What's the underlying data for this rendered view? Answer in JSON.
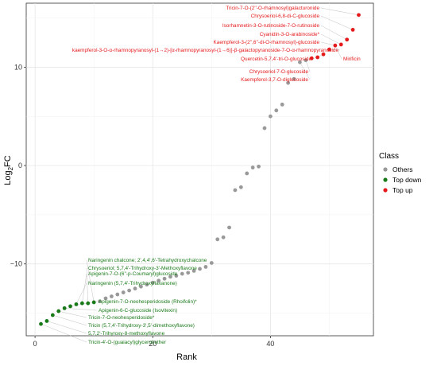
{
  "chart_data": {
    "type": "scatter",
    "xlabel": "Rank",
    "ylabel": "Log2FC",
    "ylabel_main": "Log",
    "ylabel_sub": "2",
    "ylabel_tail": "FC",
    "xlim": [
      -1.5,
      57.5
    ],
    "ylim": [
      -17.3,
      16.5
    ],
    "xticks": [
      0,
      20,
      40
    ],
    "yticks": [
      -10,
      0,
      10
    ],
    "ytick_labels": [
      "−10",
      "0",
      "10"
    ],
    "grid": true,
    "legend": {
      "title": "Class",
      "position": "right",
      "entries": [
        {
          "label": "Others",
          "color": "#999999"
        },
        {
          "label": "Top down",
          "color": "#1a7a1a"
        },
        {
          "label": "Top up",
          "color": "#e41a1c"
        }
      ]
    },
    "series": [
      {
        "name": "Top down",
        "color": "#1a7a1a",
        "x": [
          1,
          2,
          3,
          4,
          5,
          6,
          7,
          8,
          9,
          10
        ],
        "y": [
          -16.1,
          -15.8,
          -15.2,
          -14.8,
          -14.5,
          -14.3,
          -14.1,
          -14.0,
          -14.0,
          -13.9
        ]
      },
      {
        "name": "Others",
        "color": "#999999",
        "x": [
          11,
          12,
          13,
          14,
          15,
          16,
          17,
          18,
          19,
          20,
          21,
          22,
          23,
          24,
          25,
          26,
          27,
          28,
          29,
          30,
          31,
          32,
          33,
          34,
          35,
          36,
          37,
          38,
          39,
          40,
          41,
          42,
          43,
          44,
          45,
          46
        ],
        "y": [
          -13.8,
          -13.5,
          -13.3,
          -13.1,
          -12.9,
          -12.7,
          -12.5,
          -12.3,
          -12.1,
          -11.9,
          -11.7,
          -11.5,
          -11.3,
          -11.2,
          -11.0,
          -10.9,
          -10.7,
          -10.5,
          -10.3,
          -9.9,
          -7.5,
          -7.3,
          -6.3,
          -2.5,
          -2.2,
          -0.8,
          -0.2,
          -0.1,
          3.8,
          5.0,
          5.6,
          6.2,
          8.4,
          8.8,
          10.5,
          10.7
        ],
        "labels": [
          "",
          "",
          "",
          "",
          "",
          "",
          "",
          "",
          "",
          "",
          "",
          "",
          "",
          "",
          "",
          "",
          "",
          "",
          "",
          "",
          "",
          "",
          "",
          "",
          "",
          "",
          "",
          "",
          "",
          "",
          "",
          "",
          "",
          "Chrysoeriol-7-O-glucoside",
          "",
          ""
        ]
      },
      {
        "name": "Top up",
        "color": "#e41a1c",
        "x": [
          47,
          48,
          49,
          50,
          51,
          52,
          53,
          54,
          55
        ],
        "y": [
          10.9,
          11.0,
          11.3,
          11.8,
          12.2,
          12.3,
          12.8,
          13.8,
          15.3
        ]
      }
    ],
    "annotations_up": [
      {
        "text": "Tricin-7-O-(2''-O-rhamnosyl)galacturonide",
        "point": [
          55,
          15.3
        ]
      },
      {
        "text": "Chrysoeriol-6,8-di-C-glucoside",
        "point": [
          54,
          13.8
        ]
      },
      {
        "text": "Isorhamnetin-3-O-rutinoside-7-O-rutinoside",
        "point": [
          53,
          12.8
        ]
      },
      {
        "text": "Cyanidin-3-O-arabinoside*",
        "point": [
          52,
          12.3
        ]
      },
      {
        "text": "Kaempferol-3-(2'',6''-di-O-rhamnosyl)-glucoside",
        "point": [
          51,
          12.2
        ]
      },
      {
        "text": "kaempferol-3-O-α-rhamnopyranosyl-(1→2)-[α-rhamnopyranosyl-(1→6)]-β-galactopyranoside-7-O-α-rhamnopyranoside",
        "point": [
          50,
          11.8
        ]
      },
      {
        "text": "Mirificin",
        "point": [
          51,
          12.2
        ]
      },
      {
        "text": "Quercetin-5,7,4'-tri-O-glucoside",
        "point": [
          49,
          11.3
        ]
      },
      {
        "text": "Chrysoeriol-7-O-glucoside",
        "point": [
          46,
          10.7
        ]
      },
      {
        "text": "Kaempferol-3,7-O-diglucoside",
        "point": [
          45,
          10.5
        ]
      }
    ],
    "annotations_down": [
      {
        "text": "Naringenin chalcone; 2',4,4',6'-Tetrahydroxychalcone",
        "point": [
          10,
          -13.9
        ]
      },
      {
        "text": "Chrysoeriol; 5,7,4'-Trihydroxy-3'-Methoxyflavone",
        "point": [
          9,
          -14.0
        ]
      },
      {
        "text": "Apigenin-7-O-(6''-p-Coumaryl)glucoside",
        "point": [
          8,
          -14.0
        ]
      },
      {
        "text": "Naringenin (5,7,4'-Trihydroxyflavanone)",
        "point": [
          7,
          -14.1
        ]
      },
      {
        "text": "Apigenin-7-O-neohesperidoside (Rhoifolin)*",
        "point": [
          6,
          -14.3
        ]
      },
      {
        "text": "Apigenin-6-C-glucoside (Isovitexin)",
        "point": [
          5,
          -14.5
        ]
      },
      {
        "text": "Tricin-7-O-neohesperidoside*",
        "point": [
          4,
          -14.8
        ]
      },
      {
        "text": "Tricin (5,7,4'-Trihydroxy-3',5'-dimethoxyflavone)",
        "point": [
          3,
          -15.2
        ]
      },
      {
        "text": "5,7,2'-Trihyroxy-8-methoxyflavone",
        "point": [
          2,
          -15.8
        ]
      },
      {
        "text": "Tricin-4'-O-(guaiacyl)glycerol)ether",
        "point": [
          1,
          -16.1
        ]
      }
    ]
  }
}
